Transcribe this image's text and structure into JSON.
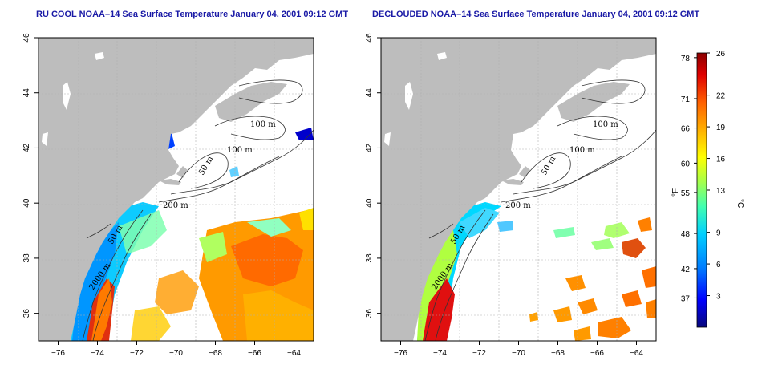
{
  "titles": {
    "left": "RU COOL NOAA–14 Sea Surface Temperature January 04, 2001 09:12 GMT",
    "right": "DECLOUDED NOAA–14 Sea Surface Temperature January 04, 2001 09:12 GMT"
  },
  "axes": {
    "x_ticks": [
      "−76",
      "−74",
      "−72",
      "−70",
      "−68",
      "−66",
      "−64"
    ],
    "y_ticks": [
      "36",
      "38",
      "40",
      "42",
      "44",
      "46"
    ]
  },
  "contour_labels": [
    "100 m",
    "100 m",
    "50 m",
    "200 m",
    "50 m",
    "2000 m"
  ],
  "colorbar": {
    "fahrenheit_label": "°F",
    "celsius_label": "°C",
    "fahrenheit_ticks": [
      "78",
      "71",
      "66",
      "60",
      "55",
      "48",
      "42",
      "37"
    ],
    "celsius_ticks": [
      "26",
      "22",
      "19",
      "16",
      "13",
      "9",
      "6",
      "3"
    ]
  },
  "colors": {
    "title": "#1a1aa6",
    "land": "#bdbdbd",
    "grid": "#b0b0b0",
    "colorbar_stops": [
      "#08087a",
      "#0000ff",
      "#0080ff",
      "#00d0ff",
      "#40ffb0",
      "#b0ff40",
      "#ffff00",
      "#ffb000",
      "#ff6000",
      "#e00000",
      "#8b0000"
    ]
  }
}
